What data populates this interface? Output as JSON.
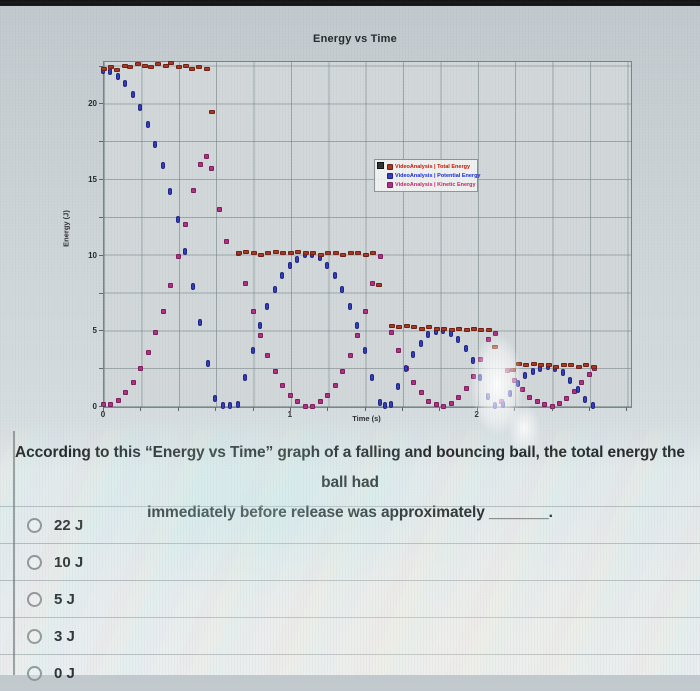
{
  "page": {
    "top_bar_color": "#161616",
    "question": {
      "line1": "According to this “Energy vs Time” graph of a falling and bouncing ball, the total energy the ball had",
      "line2": "immediately before release was approximately _______."
    },
    "options": [
      {
        "id": "22j",
        "label": "22 J",
        "selected": false
      },
      {
        "id": "10j",
        "label": "10 J",
        "selected": false
      },
      {
        "id": "5j",
        "label": "5 J",
        "selected": false
      },
      {
        "id": "3j",
        "label": "3 J",
        "selected": false
      },
      {
        "id": "0j",
        "label": "0 J",
        "selected": false
      }
    ]
  },
  "chart_data": {
    "type": "scatter",
    "title": "Energy vs Time",
    "xlabel": "Time (s)",
    "ylabel": "Energy (J)",
    "xlim": [
      0,
      2.82
    ],
    "ylim": [
      0,
      22.8
    ],
    "x_ticks": [
      0,
      1,
      2
    ],
    "y_ticks": [
      0,
      5,
      10,
      15,
      20
    ],
    "grid": {
      "on": true,
      "x_step": 0.2,
      "y_step": 2.5
    },
    "legend_position": "inside upper middle-right",
    "description": "Ball released from rest with ~22 J total energy; each bounce plateau of total energy: 22 J, 10 J, 5 J, 2.7 J",
    "series": [
      {
        "name": "VideoAnalysis | Total Energy",
        "marker_color": "#a83722",
        "edge_color": "#6f2012",
        "text_color": "#c21400",
        "shape": "hrect",
        "points": [
          [
            0,
            22.3
          ],
          [
            0.04,
            22.4
          ],
          [
            0.07,
            22.2
          ],
          [
            0.11,
            22.5
          ],
          [
            0.14,
            22.4
          ],
          [
            0.18,
            22.6
          ],
          [
            0.22,
            22.5
          ],
          [
            0.25,
            22.4
          ],
          [
            0.29,
            22.6
          ],
          [
            0.33,
            22.5
          ],
          [
            0.36,
            22.7
          ],
          [
            0.4,
            22.4
          ],
          [
            0.44,
            22.5
          ],
          [
            0.47,
            22.3
          ],
          [
            0.51,
            22.4
          ],
          [
            0.55,
            22.3
          ],
          [
            0.58,
            19.4
          ],
          [
            0.72,
            10.1
          ],
          [
            0.76,
            10.2
          ],
          [
            0.8,
            10.1
          ],
          [
            0.84,
            10
          ],
          [
            0.88,
            10.1
          ],
          [
            0.92,
            10.2
          ],
          [
            0.96,
            10.1
          ],
          [
            1,
            10.1
          ],
          [
            1.04,
            10.2
          ],
          [
            1.08,
            10.1
          ],
          [
            1.12,
            10.1
          ],
          [
            1.16,
            10
          ],
          [
            1.2,
            10.1
          ],
          [
            1.24,
            10.1
          ],
          [
            1.28,
            10
          ],
          [
            1.32,
            10.1
          ],
          [
            1.36,
            10.1
          ],
          [
            1.4,
            10
          ],
          [
            1.44,
            10.1
          ],
          [
            1.47,
            8
          ],
          [
            1.54,
            5.3
          ],
          [
            1.58,
            5.2
          ],
          [
            1.62,
            5.3
          ],
          [
            1.66,
            5.2
          ],
          [
            1.7,
            5.1
          ],
          [
            1.74,
            5.2
          ],
          [
            1.78,
            5.1
          ],
          [
            1.82,
            5.1
          ],
          [
            1.86,
            5
          ],
          [
            1.9,
            5.1
          ],
          [
            1.94,
            5
          ],
          [
            1.98,
            5.1
          ],
          [
            2.02,
            5
          ],
          [
            2.06,
            5
          ],
          [
            2.09,
            3.9
          ],
          [
            2.19,
            2.4
          ],
          [
            2.22,
            2.8
          ],
          [
            2.26,
            2.7
          ],
          [
            2.3,
            2.8
          ],
          [
            2.34,
            2.7
          ],
          [
            2.38,
            2.7
          ],
          [
            2.42,
            2.6
          ],
          [
            2.46,
            2.7
          ],
          [
            2.5,
            2.7
          ],
          [
            2.54,
            2.6
          ],
          [
            2.58,
            2.7
          ],
          [
            2.62,
            2.6
          ]
        ]
      },
      {
        "name": "VideoAnalysis | Potential Energy",
        "marker_color": "#333cbd",
        "edge_color": "#1d2380",
        "text_color": "#1a28cc",
        "shape": "vpill",
        "points": [
          [
            0,
            22.3
          ],
          [
            0.04,
            22.2
          ],
          [
            0.08,
            21.9
          ],
          [
            0.12,
            21.4
          ],
          [
            0.16,
            20.7
          ],
          [
            0.2,
            19.8
          ],
          [
            0.24,
            18.7
          ],
          [
            0.28,
            17.4
          ],
          [
            0.32,
            16
          ],
          [
            0.36,
            14.3
          ],
          [
            0.4,
            12.4
          ],
          [
            0.44,
            10.3
          ],
          [
            0.48,
            8
          ],
          [
            0.52,
            5.6
          ],
          [
            0.56,
            2.9
          ],
          [
            0.6,
            0.6
          ],
          [
            0.64,
            0.1
          ],
          [
            0.68,
            0.1
          ],
          [
            0.72,
            0.2
          ],
          [
            0.76,
            2
          ],
          [
            0.8,
            3.8
          ],
          [
            0.84,
            5.4
          ],
          [
            0.88,
            6.7
          ],
          [
            0.92,
            7.8
          ],
          [
            0.96,
            8.7
          ],
          [
            1,
            9.4
          ],
          [
            1.04,
            9.8
          ],
          [
            1.08,
            10.1
          ],
          [
            1.12,
            10.1
          ],
          [
            1.16,
            9.9
          ],
          [
            1.2,
            9.4
          ],
          [
            1.24,
            8.7
          ],
          [
            1.28,
            7.8
          ],
          [
            1.32,
            6.7
          ],
          [
            1.36,
            5.4
          ],
          [
            1.4,
            3.8
          ],
          [
            1.44,
            2
          ],
          [
            1.48,
            0.3
          ],
          [
            1.51,
            0.1
          ],
          [
            1.54,
            0.2
          ],
          [
            1.58,
            1.4
          ],
          [
            1.62,
            2.6
          ],
          [
            1.66,
            3.5
          ],
          [
            1.7,
            4.2
          ],
          [
            1.74,
            4.8
          ],
          [
            1.78,
            5
          ],
          [
            1.82,
            5.1
          ],
          [
            1.86,
            4.9
          ],
          [
            1.9,
            4.5
          ],
          [
            1.94,
            3.9
          ],
          [
            1.98,
            3.1
          ],
          [
            2.02,
            2
          ],
          [
            2.06,
            0.7
          ],
          [
            2.1,
            0.1
          ],
          [
            2.14,
            0.2
          ],
          [
            2.18,
            0.9
          ],
          [
            2.22,
            1.6
          ],
          [
            2.26,
            2.1
          ],
          [
            2.3,
            2.4
          ],
          [
            2.34,
            2.6
          ],
          [
            2.38,
            2.7
          ],
          [
            2.42,
            2.6
          ],
          [
            2.46,
            2.3
          ],
          [
            2.5,
            1.8
          ],
          [
            2.54,
            1.2
          ],
          [
            2.58,
            0.5
          ],
          [
            2.62,
            0.1
          ]
        ]
      },
      {
        "name": "VideoAnalysis | Kinetic Energy",
        "marker_color": "#b12e85",
        "edge_color": "#7c1e5b",
        "text_color": "#c22566",
        "shape": "square",
        "points": [
          [
            0,
            0.1
          ],
          [
            0.04,
            0.1
          ],
          [
            0.08,
            0.4
          ],
          [
            0.12,
            0.9
          ],
          [
            0.16,
            1.6
          ],
          [
            0.2,
            2.5
          ],
          [
            0.24,
            3.6
          ],
          [
            0.28,
            4.9
          ],
          [
            0.32,
            6.3
          ],
          [
            0.36,
            8
          ],
          [
            0.4,
            9.9
          ],
          [
            0.44,
            12
          ],
          [
            0.48,
            14.3
          ],
          [
            0.52,
            16
          ],
          [
            0.55,
            16.5
          ],
          [
            0.58,
            15.7
          ],
          [
            0.62,
            13
          ],
          [
            0.66,
            10.9
          ],
          [
            0.72,
            10.1
          ],
          [
            0.76,
            8.1
          ],
          [
            0.8,
            6.3
          ],
          [
            0.84,
            4.7
          ],
          [
            0.88,
            3.4
          ],
          [
            0.92,
            2.3
          ],
          [
            0.96,
            1.4
          ],
          [
            1,
            0.7
          ],
          [
            1.04,
            0.3
          ],
          [
            1.08,
            0
          ],
          [
            1.12,
            0
          ],
          [
            1.16,
            0.3
          ],
          [
            1.2,
            0.7
          ],
          [
            1.24,
            1.4
          ],
          [
            1.28,
            2.3
          ],
          [
            1.32,
            3.4
          ],
          [
            1.36,
            4.7
          ],
          [
            1.4,
            6.3
          ],
          [
            1.44,
            8.1
          ],
          [
            1.48,
            9.9
          ],
          [
            1.54,
            4.9
          ],
          [
            1.58,
            3.7
          ],
          [
            1.62,
            2.5
          ],
          [
            1.66,
            1.6
          ],
          [
            1.7,
            0.9
          ],
          [
            1.74,
            0.3
          ],
          [
            1.78,
            0.1
          ],
          [
            1.82,
            0
          ],
          [
            1.86,
            0.2
          ],
          [
            1.9,
            0.6
          ],
          [
            1.94,
            1.2
          ],
          [
            1.98,
            2
          ],
          [
            2.02,
            3.1
          ],
          [
            2.06,
            4.4
          ],
          [
            2.1,
            4.8
          ],
          [
            2.13,
            0.3
          ],
          [
            2.16,
            2.4
          ],
          [
            2.2,
            1.7
          ],
          [
            2.24,
            1.1
          ],
          [
            2.28,
            0.6
          ],
          [
            2.32,
            0.3
          ],
          [
            2.36,
            0.1
          ],
          [
            2.4,
            0
          ],
          [
            2.44,
            0.2
          ],
          [
            2.48,
            0.5
          ],
          [
            2.52,
            1
          ],
          [
            2.56,
            1.6
          ],
          [
            2.6,
            2.1
          ],
          [
            2.63,
            2.5
          ]
        ]
      }
    ]
  }
}
